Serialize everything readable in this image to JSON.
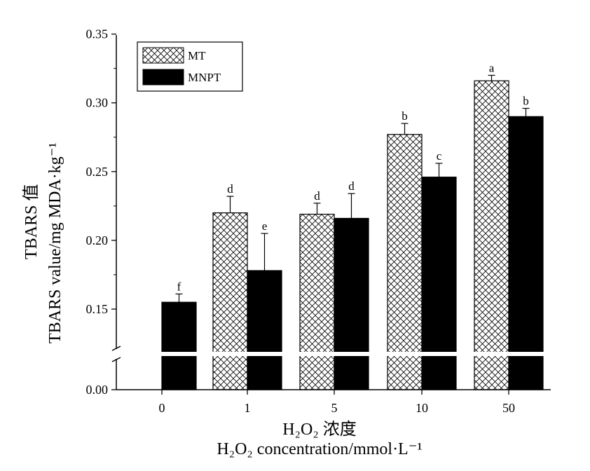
{
  "chart_data": {
    "type": "bar",
    "categories": [
      "0",
      "1",
      "5",
      "10",
      "50"
    ],
    "series": [
      {
        "name": "MT",
        "pattern": "crosshatch",
        "values": [
          null,
          0.22,
          0.219,
          0.277,
          0.316
        ],
        "errors": [
          null,
          0.012,
          0.008,
          0.008,
          0.004
        ],
        "labels": [
          "",
          "d",
          "d",
          "b",
          "a"
        ]
      },
      {
        "name": "MNPT",
        "color": "#000000",
        "values": [
          0.155,
          0.178,
          0.216,
          0.246,
          0.29
        ],
        "errors": [
          0.006,
          0.027,
          0.018,
          0.01,
          0.006
        ],
        "labels": [
          "f",
          "e",
          "d",
          "c",
          "b"
        ]
      }
    ],
    "xlabel_line1": "H₂O₂ 浓度",
    "xlabel_line2": "H₂O₂  concentration/mmol·L⁻¹",
    "ylabel_line1": "TBARS 值",
    "ylabel_line2": "TBARS  value/mg  MDA·kg⁻¹",
    "y_ticks": [
      "0.00",
      "0.15",
      "0.20",
      "0.25",
      "0.30",
      "0.35"
    ],
    "ylim": [
      0.0,
      0.35
    ],
    "axis_break": "between 0.00 and 0.15",
    "grid": false,
    "legend_position": "top-left"
  }
}
